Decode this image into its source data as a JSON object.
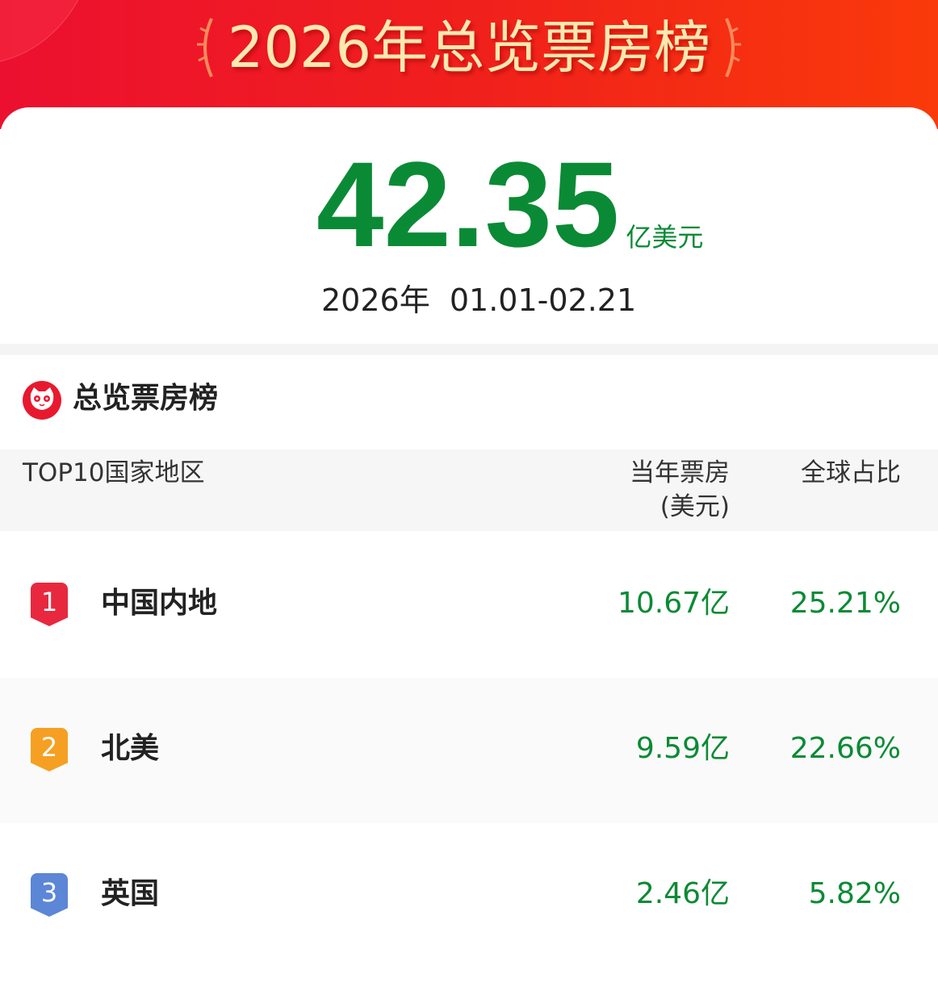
{
  "banner": {
    "title": "2026年总览票房榜"
  },
  "summary": {
    "total": "42.35",
    "unit": "亿美元",
    "period": "2026年  01.01-02.21"
  },
  "section": {
    "title": "总览票房榜"
  },
  "table": {
    "headers": {
      "region": "TOP10国家地区",
      "box_office_line1": "当年票房",
      "box_office_line2": "(美元)",
      "share": "全球占比"
    },
    "rows": [
      {
        "rank": "1",
        "name": "中国内地",
        "box_office": "10.67亿",
        "share": "25.21%",
        "badge_color": "#e8283e"
      },
      {
        "rank": "2",
        "name": "北美",
        "box_office": "9.59亿",
        "share": "22.66%",
        "badge_color": "#f5a023"
      },
      {
        "rank": "3",
        "name": "英国",
        "box_office": "2.46亿",
        "share": "5.82%",
        "badge_color": "#5c86d6"
      }
    ]
  },
  "colors": {
    "accent_green": "#0b8a35",
    "banner_red": "#f0201c"
  }
}
